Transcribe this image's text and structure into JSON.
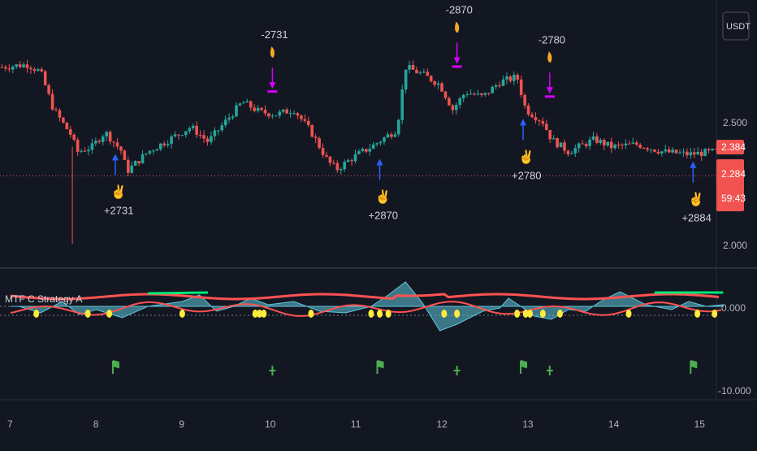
{
  "toolbar": {
    "currency_label": "USDT"
  },
  "indicator": {
    "title": "MTF C Strategy A"
  },
  "price_axis": {
    "ticks": [
      "2.500",
      "2.000"
    ],
    "last_price": "2.384",
    "marked_price": "2.284",
    "countdown": "59:43"
  },
  "osc_axis": {
    "ticks": [
      "0.000",
      "-10.000"
    ]
  },
  "time_axis": {
    "ticks": [
      "7",
      "8",
      "9",
      "10",
      "11",
      "12",
      "13",
      "14",
      "15"
    ]
  },
  "trades": [
    {
      "side": "buy",
      "label": "+2731",
      "day": 8.22,
      "price": 2.3
    },
    {
      "side": "sell",
      "label": "-2731",
      "day": 10.05,
      "price": 2.62
    },
    {
      "side": "buy",
      "label": "+2870",
      "day": 11.3,
      "price": 2.28
    },
    {
      "side": "sell",
      "label": "-2870",
      "day": 12.2,
      "price": 2.72
    },
    {
      "side": "buy",
      "label": "+2780",
      "day": 12.97,
      "price": 2.44
    },
    {
      "side": "sell",
      "label": "-2780",
      "day": 13.28,
      "price": 2.6
    },
    {
      "side": "buy",
      "label": "+2884",
      "day": 14.95,
      "price": 2.27
    }
  ],
  "colors": {
    "background": "#131722",
    "bull": "#26a69a",
    "bear": "#ef5350",
    "buy_arrow": "#2962ff",
    "sell_arrow": "#d500f9",
    "osc_fill": "#5ec6da",
    "osc_red": "#ff5252",
    "osc_green": "#00e676",
    "osc_dots": "#ffeb3b",
    "flag_green": "#4caf50",
    "price_tag": "#f05350"
  }
}
